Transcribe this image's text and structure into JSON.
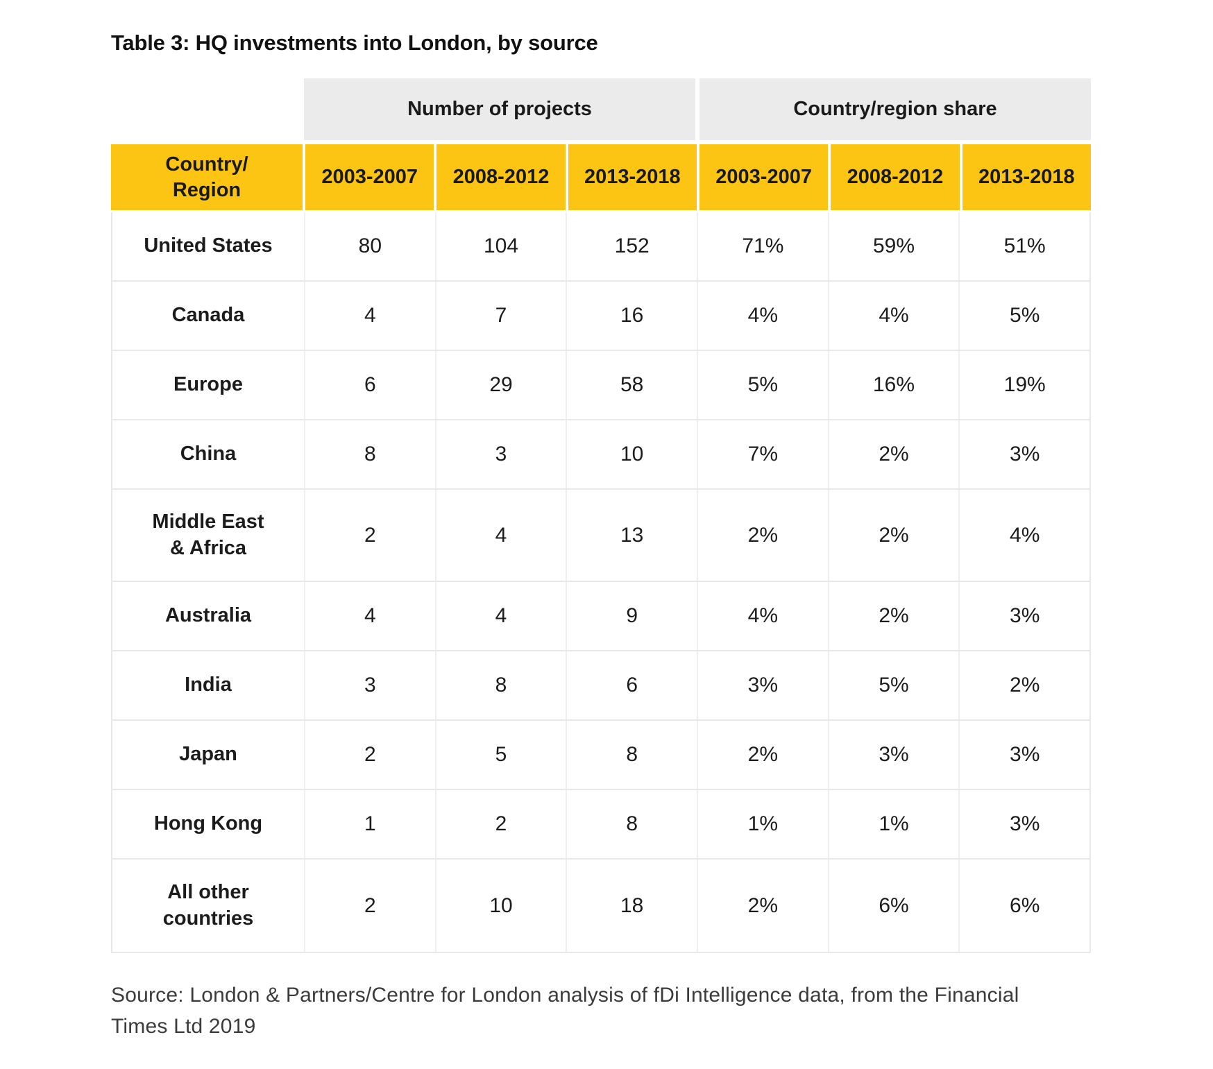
{
  "title": "Table 3: HQ investments into London, by source",
  "colors": {
    "header_yellow": "#FDC513",
    "group_header_gray": "#EBEBEB",
    "grid_line": "#E9E8E7"
  },
  "table": {
    "group_headers": [
      "Number of projects",
      "Country/region share"
    ],
    "corner_header": "Country/\nRegion",
    "period_headers": [
      "2003-2007",
      "2008-2012",
      "2013-2018",
      "2003-2007",
      "2008-2012",
      "2013-2018"
    ],
    "rows": [
      {
        "label": "United States",
        "values": [
          "80",
          "104",
          "152",
          "71%",
          "59%",
          "51%"
        ]
      },
      {
        "label": "Canada",
        "values": [
          "4",
          "7",
          "16",
          "4%",
          "4%",
          "5%"
        ]
      },
      {
        "label": "Europe",
        "values": [
          "6",
          "29",
          "58",
          "5%",
          "16%",
          "19%"
        ]
      },
      {
        "label": "China",
        "values": [
          "8",
          "3",
          "10",
          "7%",
          "2%",
          "3%"
        ]
      },
      {
        "label": "Middle East\n& Africa",
        "values": [
          "2",
          "4",
          "13",
          "2%",
          "2%",
          "4%"
        ]
      },
      {
        "label": "Australia",
        "values": [
          "4",
          "4",
          "9",
          "4%",
          "2%",
          "3%"
        ]
      },
      {
        "label": "India",
        "values": [
          "3",
          "8",
          "6",
          "3%",
          "5%",
          "2%"
        ]
      },
      {
        "label": "Japan",
        "values": [
          "2",
          "5",
          "8",
          "2%",
          "3%",
          "3%"
        ]
      },
      {
        "label": "Hong Kong",
        "values": [
          "1",
          "2",
          "8",
          "1%",
          "1%",
          "3%"
        ]
      },
      {
        "label": "All other\ncountries",
        "values": [
          "2",
          "10",
          "18",
          "2%",
          "6%",
          "6%"
        ]
      }
    ]
  },
  "source_note": "Source: London & Partners/Centre for London analysis of fDi Intelligence data, from the Financial\nTimes Ltd 2019"
}
